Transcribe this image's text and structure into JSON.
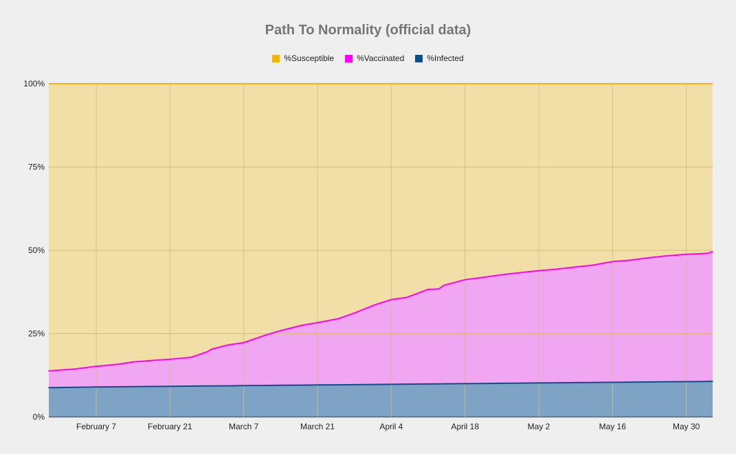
{
  "chart_data": {
    "type": "area",
    "title": "Path To Normality (official data)",
    "stacked": "percent",
    "x_dates_start": "2021-01-29",
    "x_dates_end": "2021-06-04",
    "x_tick_labels": [
      "February 7",
      "February 21",
      "March 7",
      "March 21",
      "April 4",
      "April 18",
      "May 2",
      "May 16",
      "May 30"
    ],
    "x_tick_dates": [
      "2021-02-07",
      "2021-02-21",
      "2021-03-07",
      "2021-03-21",
      "2021-04-04",
      "2021-04-18",
      "2021-05-02",
      "2021-05-16",
      "2021-05-30"
    ],
    "y_tick_labels": [
      "0%",
      "25%",
      "50%",
      "75%",
      "100%"
    ],
    "ylim": [
      0,
      100
    ],
    "legend_position": "top",
    "grid": true,
    "series": [
      {
        "name": "%Susceptible",
        "color": "#f4b400",
        "fill": "#f2dfa7"
      },
      {
        "name": "%Vaccinated",
        "color": "#ff00ff",
        "fill": "#f1a6f1"
      },
      {
        "name": "%Infected",
        "color": "#0b4f8a",
        "fill": "#7fa3c4"
      }
    ],
    "points": [
      {
        "date": "2021-01-29",
        "infected": 8.8,
        "vaccinated_cum": 13.8
      },
      {
        "date": "2021-02-03",
        "infected": 8.9,
        "vaccinated_cum": 14.4
      },
      {
        "date": "2021-02-07",
        "infected": 9.0,
        "vaccinated_cum": 15.2
      },
      {
        "date": "2021-02-11",
        "infected": 9.05,
        "vaccinated_cum": 15.8
      },
      {
        "date": "2021-02-14",
        "infected": 9.1,
        "vaccinated_cum": 16.5
      },
      {
        "date": "2021-02-18",
        "infected": 9.15,
        "vaccinated_cum": 17.0
      },
      {
        "date": "2021-02-21",
        "infected": 9.2,
        "vaccinated_cum": 17.3
      },
      {
        "date": "2021-02-25",
        "infected": 9.25,
        "vaccinated_cum": 17.9
      },
      {
        "date": "2021-02-28",
        "infected": 9.3,
        "vaccinated_cum": 19.5
      },
      {
        "date": "2021-03-01",
        "infected": 9.32,
        "vaccinated_cum": 20.4
      },
      {
        "date": "2021-03-04",
        "infected": 9.35,
        "vaccinated_cum": 21.6
      },
      {
        "date": "2021-03-07",
        "infected": 9.4,
        "vaccinated_cum": 22.3
      },
      {
        "date": "2021-03-11",
        "infected": 9.45,
        "vaccinated_cum": 24.5
      },
      {
        "date": "2021-03-14",
        "infected": 9.5,
        "vaccinated_cum": 25.9
      },
      {
        "date": "2021-03-18",
        "infected": 9.55,
        "vaccinated_cum": 27.5
      },
      {
        "date": "2021-03-21",
        "infected": 9.6,
        "vaccinated_cum": 28.3
      },
      {
        "date": "2021-03-25",
        "infected": 9.65,
        "vaccinated_cum": 29.5
      },
      {
        "date": "2021-03-28",
        "infected": 9.7,
        "vaccinated_cum": 31.2
      },
      {
        "date": "2021-04-01",
        "infected": 9.75,
        "vaccinated_cum": 33.7
      },
      {
        "date": "2021-04-04",
        "infected": 9.8,
        "vaccinated_cum": 35.2
      },
      {
        "date": "2021-04-07",
        "infected": 9.85,
        "vaccinated_cum": 35.9
      },
      {
        "date": "2021-04-11",
        "infected": 9.9,
        "vaccinated_cum": 38.3
      },
      {
        "date": "2021-04-13",
        "infected": 9.93,
        "vaccinated_cum": 38.4
      },
      {
        "date": "2021-04-14",
        "infected": 9.95,
        "vaccinated_cum": 39.5
      },
      {
        "date": "2021-04-18",
        "infected": 10.0,
        "vaccinated_cum": 41.2
      },
      {
        "date": "2021-04-21",
        "infected": 10.05,
        "vaccinated_cum": 41.8
      },
      {
        "date": "2021-04-25",
        "infected": 10.1,
        "vaccinated_cum": 42.7
      },
      {
        "date": "2021-04-28",
        "infected": 10.15,
        "vaccinated_cum": 43.2
      },
      {
        "date": "2021-05-02",
        "infected": 10.2,
        "vaccinated_cum": 43.9
      },
      {
        "date": "2021-05-05",
        "infected": 10.25,
        "vaccinated_cum": 44.3
      },
      {
        "date": "2021-05-09",
        "infected": 10.3,
        "vaccinated_cum": 45.0
      },
      {
        "date": "2021-05-12",
        "infected": 10.35,
        "vaccinated_cum": 45.5
      },
      {
        "date": "2021-05-16",
        "infected": 10.4,
        "vaccinated_cum": 46.6
      },
      {
        "date": "2021-05-19",
        "infected": 10.45,
        "vaccinated_cum": 47.0
      },
      {
        "date": "2021-05-23",
        "infected": 10.5,
        "vaccinated_cum": 47.8
      },
      {
        "date": "2021-05-26",
        "infected": 10.55,
        "vaccinated_cum": 48.3
      },
      {
        "date": "2021-05-30",
        "infected": 10.6,
        "vaccinated_cum": 48.8
      },
      {
        "date": "2021-06-03",
        "infected": 10.65,
        "vaccinated_cum": 49.1
      },
      {
        "date": "2021-06-04",
        "infected": 10.7,
        "vaccinated_cum": 49.6
      }
    ]
  }
}
